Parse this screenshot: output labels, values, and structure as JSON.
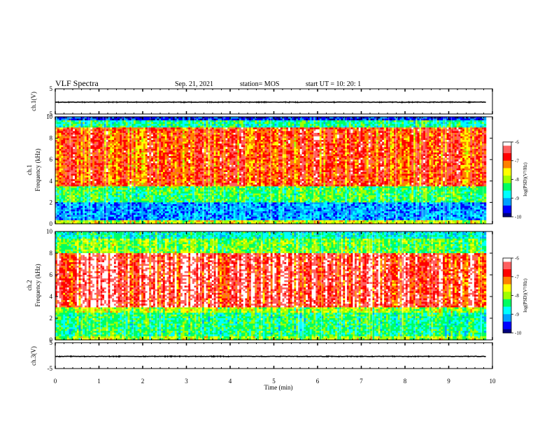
{
  "header": {
    "title": "VLF Spectra",
    "date": "Sep. 21, 2021",
    "station": "station= MOS",
    "start": "start  UT =   10: 20: 1"
  },
  "chart_data": [
    {
      "type": "line",
      "id": "ch1-waveform",
      "ylabel": "ch.1(V)",
      "ylim": [
        -5,
        5
      ],
      "y_ticks": [
        "5",
        "-5"
      ],
      "x_range": [
        0,
        9.85
      ],
      "baseline": -0.3,
      "color": "#000000"
    },
    {
      "type": "heatmap",
      "id": "ch1-spectrogram",
      "ylabel": "ch.1\nFrequency (kHz)",
      "ylim": [
        0,
        10
      ],
      "y_ticks": [
        "0",
        "2",
        "4",
        "6",
        "8",
        "10"
      ],
      "x_range": [
        0,
        9.85
      ],
      "description_bands_kHz": {
        "strong": [
          3.5,
          9.0
        ],
        "weak": [
          0.3,
          2.0
        ]
      },
      "colorbar": {
        "label": "log(PSD)(V²/Hz)",
        "ticks": [
          "-6",
          "-7",
          "-8",
          "-9",
          "-10"
        ],
        "range": [
          -10,
          -6
        ]
      }
    },
    {
      "type": "heatmap",
      "id": "ch2-spectrogram",
      "ylabel": "ch.2\nFrequency (kHz)",
      "ylim": [
        0,
        10
      ],
      "y_ticks": [
        "0",
        "2",
        "4",
        "6",
        "8",
        "10"
      ],
      "x_range": [
        0,
        9.85
      ],
      "description_bands_kHz": {
        "strong": [
          3.0,
          8.0
        ],
        "weak": [
          0.3,
          2.5
        ]
      },
      "colorbar": {
        "label": "log(PSD)(V²/Hz)",
        "ticks": [
          "-6",
          "-7",
          "-8",
          "-9",
          "-10"
        ],
        "range": [
          -10,
          -6
        ]
      }
    },
    {
      "type": "line",
      "id": "ch3-waveform",
      "ylabel": "ch.3(V)",
      "ylim": [
        -5,
        5
      ],
      "y_ticks": [
        "5",
        "-5"
      ],
      "x_range": [
        0,
        9.85
      ],
      "baseline": -0.3,
      "color": "#000000"
    }
  ],
  "x_axis": {
    "label": "Time  (min)",
    "ticks": [
      "0",
      "1",
      "2",
      "3",
      "4",
      "5",
      "6",
      "7",
      "8",
      "9",
      "10"
    ],
    "xlim": [
      0,
      10
    ]
  },
  "colors": {
    "colormap": [
      "#00007f",
      "#0000ff",
      "#00a0ff",
      "#00ffff",
      "#00ff60",
      "#a0ff00",
      "#ffff00",
      "#ff8000",
      "#ff0000",
      "#ff6060",
      "#ffffff"
    ]
  }
}
